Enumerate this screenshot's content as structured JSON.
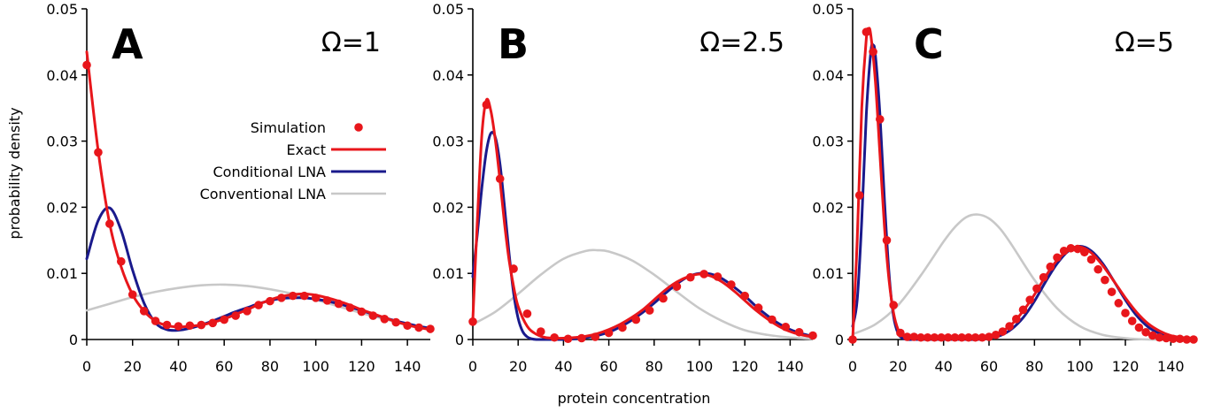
{
  "colors": {
    "simulation": "#e8161b",
    "exact": "#e8161b",
    "conditional_lna": "#1a1a8c",
    "conventional_lna": "#c8c8c8"
  },
  "chart_data": [
    {
      "type": "line",
      "panel_letter": "A",
      "omega_label": "Ω=1",
      "ylabel": "probability density",
      "xlim": [
        0,
        150
      ],
      "ylim": [
        0,
        0.05
      ],
      "x_ticks": [
        "0",
        "20",
        "40",
        "60",
        "80",
        "100",
        "120",
        "140"
      ],
      "y_ticks": [
        "0",
        "0.01",
        "0.02",
        "0.03",
        "0.04",
        "0.05"
      ],
      "legend": {
        "position": "upper-middle",
        "entries": [
          "Simulation",
          "Exact",
          "Conditional LNA",
          "Conventional LNA"
        ]
      },
      "series": [
        {
          "name": "Simulation",
          "style": "points",
          "x": [
            0,
            5,
            10,
            15,
            20,
            25,
            30,
            35,
            40,
            45,
            50,
            55,
            60,
            65,
            70,
            75,
            80,
            85,
            90,
            95,
            100,
            105,
            110,
            115,
            120,
            125,
            130,
            135,
            140,
            145,
            150
          ],
          "y": [
            0.0415,
            0.0283,
            0.0175,
            0.0118,
            0.0068,
            0.0043,
            0.0028,
            0.0022,
            0.002,
            0.0021,
            0.0022,
            0.0025,
            0.003,
            0.0036,
            0.0043,
            0.0052,
            0.0058,
            0.0063,
            0.0066,
            0.0066,
            0.0063,
            0.0059,
            0.0054,
            0.0048,
            0.0042,
            0.0036,
            0.0031,
            0.0026,
            0.0021,
            0.0018,
            0.0016
          ]
        },
        {
          "name": "Exact",
          "style": "line",
          "x": [
            0,
            5,
            10,
            15,
            20,
            25,
            30,
            35,
            40,
            45,
            50,
            55,
            60,
            65,
            70,
            75,
            80,
            85,
            90,
            95,
            100,
            105,
            110,
            115,
            120,
            125,
            130,
            135,
            140,
            145,
            150
          ],
          "y": [
            0.0435,
            0.0285,
            0.0175,
            0.011,
            0.0068,
            0.0043,
            0.0028,
            0.0021,
            0.0019,
            0.002,
            0.0022,
            0.0026,
            0.0031,
            0.0038,
            0.0045,
            0.0053,
            0.006,
            0.0065,
            0.0068,
            0.0069,
            0.0067,
            0.0063,
            0.0058,
            0.0052,
            0.0045,
            0.0039,
            0.0033,
            0.0027,
            0.0022,
            0.0018,
            0.0015
          ]
        },
        {
          "name": "Conditional LNA",
          "style": "line",
          "x": [
            0,
            5,
            10,
            15,
            20,
            25,
            30,
            35,
            40,
            45,
            50,
            55,
            60,
            65,
            70,
            75,
            80,
            85,
            90,
            95,
            100,
            105,
            110,
            115,
            120,
            125,
            130,
            135,
            140,
            145,
            150
          ],
          "y": [
            0.0122,
            0.018,
            0.0199,
            0.0165,
            0.0105,
            0.0055,
            0.0025,
            0.0015,
            0.0014,
            0.0017,
            0.0022,
            0.0028,
            0.0035,
            0.0042,
            0.0048,
            0.0054,
            0.0059,
            0.0062,
            0.0063,
            0.0063,
            0.0061,
            0.0058,
            0.0054,
            0.0049,
            0.0044,
            0.0038,
            0.0033,
            0.0028,
            0.0024,
            0.002,
            0.0017
          ]
        },
        {
          "name": "Conventional LNA",
          "style": "line",
          "x": [
            0,
            10,
            20,
            30,
            40,
            50,
            60,
            70,
            80,
            90,
            100,
            110,
            120,
            130,
            140,
            150
          ],
          "y": [
            0.0044,
            0.0054,
            0.0064,
            0.0072,
            0.0078,
            0.0082,
            0.0083,
            0.0081,
            0.0076,
            0.0069,
            0.006,
            0.005,
            0.004,
            0.0031,
            0.0022,
            0.0016
          ]
        }
      ]
    },
    {
      "type": "line",
      "panel_letter": "B",
      "omega_label": "Ω=2.5",
      "xlabel": "protein concentration",
      "xlim": [
        0,
        150
      ],
      "ylim": [
        0,
        0.05
      ],
      "x_ticks": [
        "0",
        "20",
        "40",
        "60",
        "80",
        "100",
        "120",
        "140"
      ],
      "y_ticks": [
        "0",
        "0.01",
        "0.02",
        "0.03",
        "0.04",
        "0.05"
      ],
      "series": [
        {
          "name": "Simulation",
          "style": "points",
          "x": [
            0,
            6,
            12,
            18,
            24,
            30,
            36,
            42,
            48,
            54,
            60,
            66,
            72,
            78,
            84,
            90,
            96,
            102,
            108,
            114,
            120,
            126,
            132,
            138,
            144,
            150
          ],
          "y": [
            0.0027,
            0.0355,
            0.0243,
            0.0107,
            0.0039,
            0.0012,
            0.0003,
            0.0001,
            0.0002,
            0.0004,
            0.001,
            0.0018,
            0.003,
            0.0044,
            0.0062,
            0.008,
            0.0094,
            0.0099,
            0.0095,
            0.0083,
            0.0066,
            0.0048,
            0.003,
            0.0019,
            0.0011,
            0.0006
          ]
        },
        {
          "name": "Exact",
          "style": "line",
          "x": [
            0,
            2,
            4,
            6,
            8,
            10,
            12,
            14,
            16,
            18,
            20,
            24,
            28,
            32,
            36,
            40,
            45,
            50,
            55,
            60,
            65,
            70,
            75,
            80,
            85,
            90,
            95,
            100,
            105,
            110,
            115,
            120,
            125,
            130,
            135,
            140,
            145,
            150
          ],
          "y": [
            0.003,
            0.018,
            0.031,
            0.0362,
            0.0345,
            0.03,
            0.024,
            0.0175,
            0.012,
            0.008,
            0.005,
            0.002,
            0.0008,
            0.0003,
            0.0002,
            0.0002,
            0.0003,
            0.0005,
            0.0009,
            0.0015,
            0.0023,
            0.0033,
            0.0045,
            0.006,
            0.0075,
            0.0087,
            0.0095,
            0.0099,
            0.0096,
            0.0087,
            0.0074,
            0.0059,
            0.0044,
            0.0031,
            0.002,
            0.0012,
            0.0007,
            0.0004
          ]
        },
        {
          "name": "Conditional LNA",
          "style": "line",
          "x": [
            0,
            2,
            4,
            6,
            8,
            10,
            12,
            14,
            16,
            18,
            20,
            22,
            24,
            26,
            28,
            30,
            35,
            40,
            45,
            50,
            55,
            60,
            65,
            70,
            75,
            80,
            85,
            90,
            95,
            100,
            105,
            110,
            115,
            120,
            125,
            130,
            135,
            140,
            145,
            150
          ],
          "y": [
            0.0095,
            0.016,
            0.023,
            0.0285,
            0.0312,
            0.0305,
            0.0265,
            0.02,
            0.013,
            0.007,
            0.0032,
            0.0012,
            0.0004,
            0.0001,
            0.0,
            0.0,
            0.0,
            0.0,
            0.0001,
            0.0003,
            0.0006,
            0.0011,
            0.0019,
            0.0029,
            0.0041,
            0.0055,
            0.007,
            0.0084,
            0.0095,
            0.01,
            0.0099,
            0.0092,
            0.008,
            0.0066,
            0.005,
            0.0036,
            0.0024,
            0.0015,
            0.0009,
            0.0005
          ]
        },
        {
          "name": "Conventional LNA",
          "style": "line",
          "x": [
            0,
            10,
            20,
            30,
            40,
            50,
            55,
            60,
            70,
            80,
            90,
            100,
            110,
            120,
            130,
            140,
            150
          ],
          "y": [
            0.0023,
            0.0042,
            0.0069,
            0.0098,
            0.0122,
            0.0134,
            0.0135,
            0.0133,
            0.012,
            0.0098,
            0.0072,
            0.0047,
            0.0028,
            0.0014,
            0.0007,
            0.0003,
            0.0001
          ]
        }
      ]
    },
    {
      "type": "line",
      "panel_letter": "C",
      "omega_label": "Ω=5",
      "xlim": [
        0,
        150
      ],
      "ylim": [
        0,
        0.05
      ],
      "x_ticks": [
        "0",
        "20",
        "40",
        "60",
        "80",
        "100",
        "120",
        "140"
      ],
      "y_ticks": [
        "0",
        "0.01",
        "0.02",
        "0.03",
        "0.04",
        "0.05"
      ],
      "series": [
        {
          "name": "Simulation",
          "style": "points",
          "x": [
            0,
            3,
            6,
            9,
            12,
            15,
            18,
            21,
            24,
            27,
            30,
            33,
            36,
            39,
            42,
            45,
            48,
            51,
            54,
            57,
            60,
            63,
            66,
            69,
            72,
            75,
            78,
            81,
            84,
            87,
            90,
            93,
            96,
            99,
            102,
            105,
            108,
            111,
            114,
            117,
            120,
            123,
            126,
            129,
            132,
            135,
            138,
            141,
            144,
            147,
            150
          ],
          "y": [
            0.0,
            0.0218,
            0.0465,
            0.0435,
            0.0333,
            0.015,
            0.0052,
            0.001,
            0.0004,
            0.0004,
            0.0003,
            0.0003,
            0.0003,
            0.0003,
            0.0003,
            0.0003,
            0.0003,
            0.0003,
            0.0003,
            0.0003,
            0.0004,
            0.0007,
            0.0012,
            0.002,
            0.0031,
            0.0045,
            0.006,
            0.0077,
            0.0094,
            0.011,
            0.0124,
            0.0134,
            0.0138,
            0.0137,
            0.0132,
            0.0121,
            0.0106,
            0.009,
            0.0072,
            0.0055,
            0.004,
            0.0028,
            0.0018,
            0.0011,
            0.0006,
            0.0003,
            0.0002,
            0.0001,
            0.0001,
            0.0,
            0.0
          ]
        },
        {
          "name": "Exact",
          "style": "line",
          "x": [
            0,
            2,
            4,
            6,
            7,
            8,
            10,
            12,
            14,
            16,
            18,
            20,
            22,
            24,
            26,
            30,
            40,
            50,
            55,
            60,
            65,
            70,
            75,
            80,
            85,
            90,
            95,
            100,
            105,
            110,
            115,
            120,
            125,
            130,
            135,
            140,
            145,
            150
          ],
          "y": [
            0.0,
            0.015,
            0.035,
            0.0455,
            0.047,
            0.046,
            0.039,
            0.028,
            0.017,
            0.009,
            0.004,
            0.0015,
            0.0006,
            0.0003,
            0.0003,
            0.0003,
            0.0003,
            0.0003,
            0.0003,
            0.0005,
            0.0011,
            0.0023,
            0.0043,
            0.0068,
            0.0096,
            0.012,
            0.0135,
            0.014,
            0.0131,
            0.0112,
            0.0088,
            0.0063,
            0.0041,
            0.0024,
            0.0013,
            0.0006,
            0.0003,
            0.0001
          ]
        },
        {
          "name": "Conditional LNA",
          "style": "line",
          "x": [
            0,
            2,
            4,
            6,
            8,
            9,
            10,
            12,
            14,
            16,
            18,
            20,
            22,
            24,
            26,
            30,
            40,
            50,
            55,
            60,
            65,
            70,
            75,
            80,
            85,
            90,
            95,
            100,
            105,
            110,
            115,
            120,
            125,
            130,
            135,
            140,
            145,
            150
          ],
          "y": [
            0.002,
            0.006,
            0.018,
            0.034,
            0.0435,
            0.0445,
            0.043,
            0.034,
            0.021,
            0.01,
            0.0035,
            0.0009,
            0.0002,
            0.0,
            0.0,
            0.0,
            0.0,
            0.0,
            0.0,
            0.0002,
            0.0006,
            0.0016,
            0.0033,
            0.0058,
            0.0088,
            0.0115,
            0.0134,
            0.0141,
            0.0134,
            0.0115,
            0.0088,
            0.006,
            0.0036,
            0.0019,
            0.0009,
            0.0004,
            0.0001,
            0.0
          ]
        },
        {
          "name": "Conventional LNA",
          "style": "line",
          "x": [
            0,
            10,
            20,
            30,
            40,
            45,
            50,
            55,
            60,
            65,
            70,
            80,
            90,
            100,
            110,
            120,
            130,
            140,
            150
          ],
          "y": [
            0.0008,
            0.0023,
            0.0052,
            0.0097,
            0.0148,
            0.017,
            0.0185,
            0.0189,
            0.0183,
            0.0167,
            0.0143,
            0.009,
            0.0047,
            0.002,
            0.0007,
            0.0002,
            0.0,
            0.0,
            0.0
          ]
        }
      ]
    }
  ]
}
